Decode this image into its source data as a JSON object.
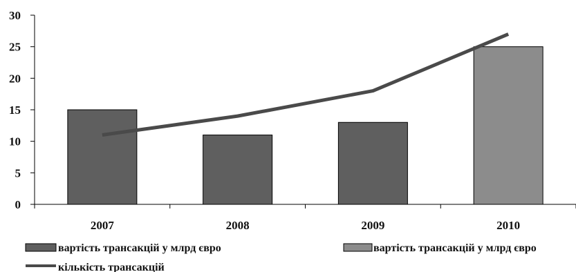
{
  "chart_data": {
    "type": "bar",
    "categories": [
      "2007",
      "2008",
      "2009",
      "2010"
    ],
    "ylim": [
      0,
      30
    ],
    "yticks": [
      "0",
      "5",
      "10",
      "15",
      "20",
      "25",
      "30"
    ],
    "series": [
      {
        "name": "вартість трансакцій у млрд євро",
        "type": "bar",
        "values": [
          15,
          11,
          13,
          null
        ],
        "color": "#5f5f5f"
      },
      {
        "name": "вартість трансакцій у млрд євро",
        "type": "bar",
        "values": [
          null,
          null,
          null,
          25
        ],
        "color": "#8c8c8c"
      },
      {
        "name": "кількість трансакцій",
        "type": "line",
        "values": [
          11,
          14,
          18,
          27
        ],
        "color": "#4a4a4a"
      }
    ],
    "grid": false,
    "legend": "bottom"
  }
}
